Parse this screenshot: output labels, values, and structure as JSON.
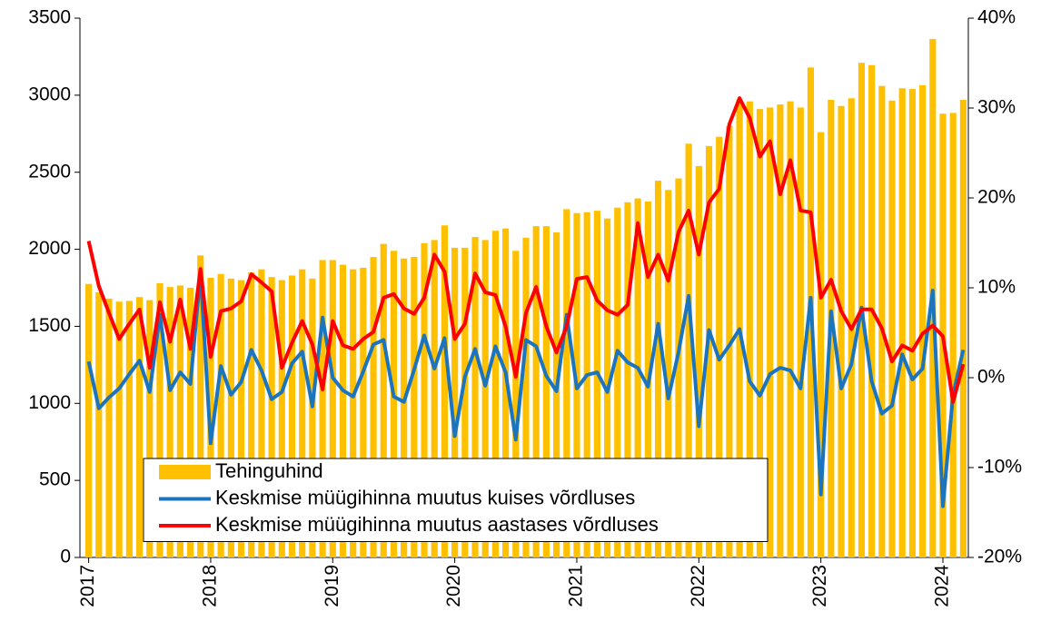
{
  "chart_data": {
    "type": "bar_line",
    "categories": [
      "2017",
      null,
      null,
      null,
      null,
      null,
      null,
      null,
      null,
      null,
      null,
      null,
      "2018",
      null,
      null,
      null,
      null,
      null,
      null,
      null,
      null,
      null,
      null,
      null,
      "2019",
      null,
      null,
      null,
      null,
      null,
      null,
      null,
      null,
      null,
      null,
      null,
      "2020",
      null,
      null,
      null,
      null,
      null,
      null,
      null,
      null,
      null,
      null,
      null,
      "2021",
      null,
      null,
      null,
      null,
      null,
      null,
      null,
      null,
      null,
      null,
      null,
      "2022",
      null,
      null,
      null,
      null,
      null,
      null,
      null,
      null,
      null,
      null,
      null,
      "2023",
      null,
      null,
      null,
      null,
      null,
      null,
      null,
      null,
      null,
      null,
      null,
      "2024",
      null,
      null
    ],
    "series": [
      {
        "name": "Tehinguhind",
        "type": "bar",
        "color": "#FFC000",
        "values": [
          1775,
          1720,
          1680,
          1660,
          1665,
          1690,
          1670,
          1780,
          1755,
          1765,
          1750,
          1960,
          1815,
          1840,
          1810,
          1800,
          1850,
          1870,
          1820,
          1800,
          1830,
          1870,
          1810,
          1930,
          1930,
          1900,
          1870,
          1880,
          1950,
          2035,
          1990,
          1940,
          1950,
          2040,
          2060,
          2155,
          2010,
          2010,
          2080,
          2060,
          2120,
          2135,
          1990,
          2075,
          2150,
          2150,
          2110,
          2260,
          2235,
          2240,
          2250,
          2200,
          2270,
          2305,
          2330,
          2310,
          2445,
          2385,
          2460,
          2685,
          2540,
          2670,
          2730,
          2800,
          2970,
          2960,
          2910,
          2920,
          2940,
          2960,
          2920,
          3180,
          2760,
          2970,
          2930,
          2980,
          3210,
          3195,
          3060,
          2965,
          3045,
          3040,
          3065,
          3365,
          2880,
          2885,
          2970
        ]
      },
      {
        "name": "Keskmise müügihinna muutus kuises võrdluses",
        "type": "line",
        "axis": "y2",
        "color": "#1C75BC",
        "values": [
          1.8,
          -3.4,
          -2.2,
          -1.2,
          0.4,
          1.9,
          -1.6,
          7.0,
          -1.4,
          0.6,
          -0.7,
          11.7,
          -7.3,
          1.3,
          -1.9,
          -0.5,
          3.1,
          0.8,
          -2.4,
          -1.6,
          1.6,
          2.9,
          -3.2,
          6.7,
          0,
          -1.4,
          -2.1,
          0.7,
          3.7,
          4.2,
          -2.1,
          -2.7,
          0.9,
          4.7,
          1.0,
          4.4,
          -6.5,
          0.1,
          3.2,
          -0.9,
          3.5,
          0.6,
          -6.9,
          4.2,
          3.5,
          0.2,
          -1.5,
          7.0,
          -1.2,
          0.3,
          0.6,
          -1.6,
          3.0,
          1.7,
          1.1,
          -1.0,
          6.0,
          -2.3,
          2.8,
          9.1,
          -5.4,
          5.3,
          2.0,
          3.6,
          5.4,
          -0.4,
          -2.0,
          0.4,
          1.1,
          0.8,
          -1.2,
          8.9,
          -13.0,
          7.4,
          -1.2,
          1.5,
          7.8,
          -0.4,
          -4.0,
          -3.1,
          2.6,
          -0.2,
          1.0,
          9.7,
          -14.3,
          -1.9,
          3.1
        ]
      },
      {
        "name": "Keskmise müügihinna muutus aastases võrdluses",
        "type": "line",
        "axis": "y2",
        "color": "#FF0000",
        "values": [
          15.2,
          10.2,
          7.2,
          4.3,
          6.0,
          7.6,
          1.1,
          8.4,
          4.0,
          8.7,
          3.2,
          12.1,
          2.3,
          7.4,
          7.7,
          8.5,
          11.5,
          10.6,
          9.6,
          1.1,
          3.9,
          6.3,
          3.7,
          -1.3,
          6.3,
          3.6,
          3.2,
          4.3,
          5.1,
          8.9,
          9.3,
          7.7,
          7.1,
          8.9,
          13.7,
          11.8,
          4.3,
          6.0,
          11.6,
          9.5,
          9.2,
          5.7,
          0.1,
          7.2,
          10.1,
          5.7,
          2.8,
          5.7,
          11.0,
          11.2,
          8.6,
          7.5,
          7.0,
          8.1,
          17.2,
          11.2,
          13.7,
          10.8,
          16.2,
          18.6,
          13.7,
          19.5,
          21.0,
          28.2,
          31.1,
          28.9,
          24.6,
          26.3,
          20.4,
          24.2,
          18.6,
          18.4,
          8.9,
          10.9,
          7.4,
          5.4,
          7.6,
          7.6,
          5.5,
          1.8,
          3.6,
          3.0,
          4.9,
          5.8,
          4.6,
          -2.7,
          1.5
        ]
      }
    ],
    "ylim": [
      0,
      3500
    ],
    "yticks": [
      0,
      500,
      1000,
      1500,
      2000,
      2500,
      3000,
      3500
    ],
    "y2lim": [
      -20,
      40
    ],
    "y2ticks": [
      {
        "value": -20,
        "label": "-20%"
      },
      {
        "value": -10,
        "label": "-10%"
      },
      {
        "value": 0,
        "label": "0%"
      },
      {
        "value": 10,
        "label": "10%"
      },
      {
        "value": 20,
        "label": "20%"
      },
      {
        "value": 30,
        "label": "30%"
      },
      {
        "value": 40,
        "label": "40%"
      }
    ],
    "legend": "lower left"
  }
}
